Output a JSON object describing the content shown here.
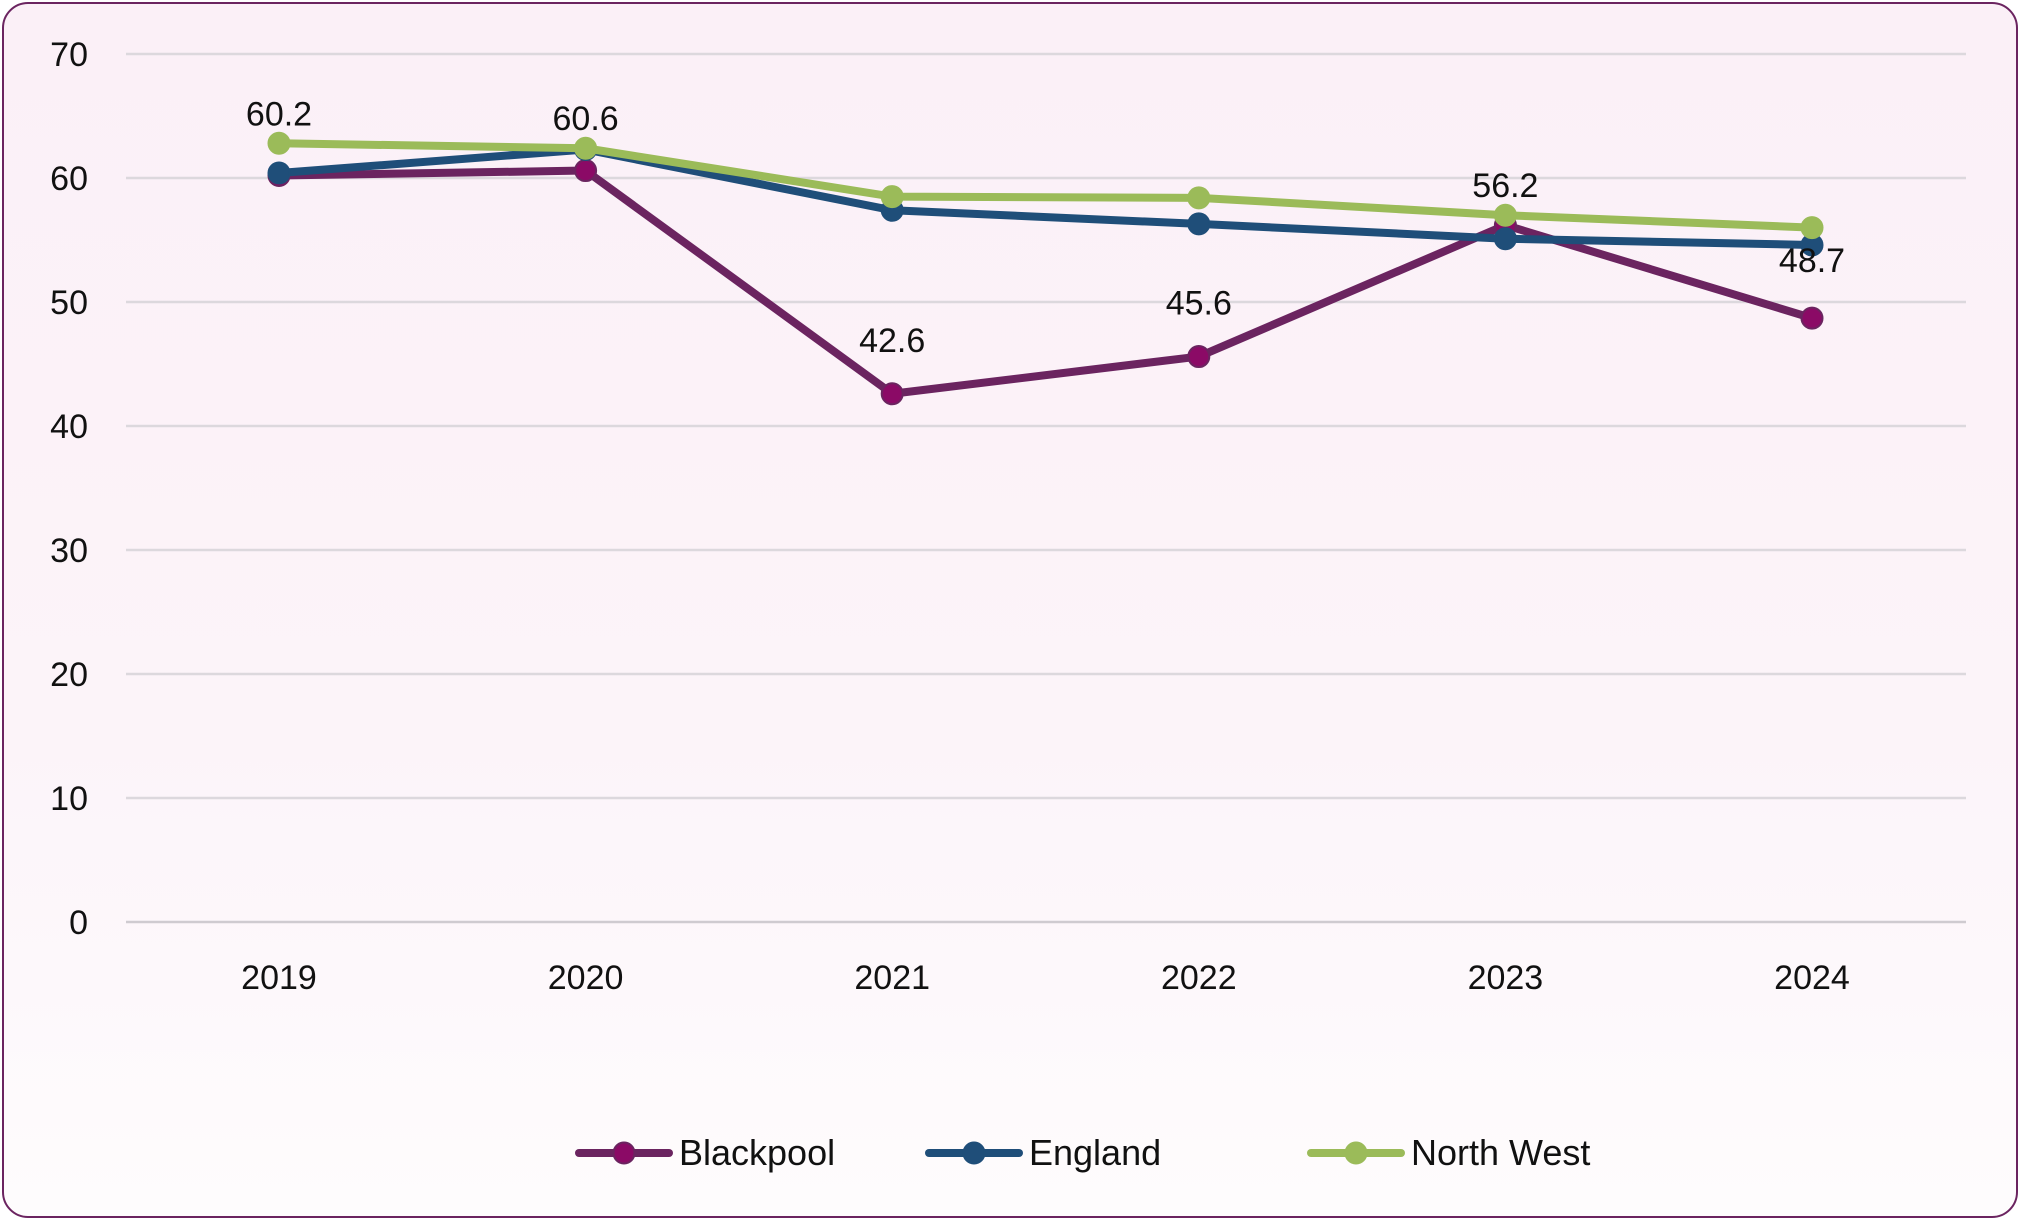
{
  "chart_data": {
    "type": "line",
    "title": "",
    "xlabel": "",
    "ylabel": "",
    "categories": [
      "2019",
      "2020",
      "2021",
      "2022",
      "2023",
      "2024"
    ],
    "ylim": [
      0,
      70
    ],
    "yticks": [
      0,
      10,
      20,
      30,
      40,
      50,
      60,
      70
    ],
    "grid": true,
    "legend_position": "bottom",
    "series": [
      {
        "name": "Blackpool",
        "color": "#6b2460",
        "marker_color": "#8b0a66",
        "values": [
          60.2,
          60.6,
          42.6,
          45.6,
          56.2,
          48.7
        ],
        "labels": [
          "60.2",
          "60.6",
          "42.6",
          "45.6",
          "56.2",
          "48.7"
        ]
      },
      {
        "name": "England",
        "color": "#1f4e79",
        "marker_color": "#1f4e79",
        "values": [
          60.4,
          62.3,
          57.4,
          56.3,
          55.1,
          54.6
        ]
      },
      {
        "name": "North West",
        "color": "#9bbb59",
        "marker_color": "#9bbb59",
        "values": [
          62.8,
          62.4,
          58.5,
          58.4,
          57.0,
          56.0
        ]
      }
    ]
  }
}
